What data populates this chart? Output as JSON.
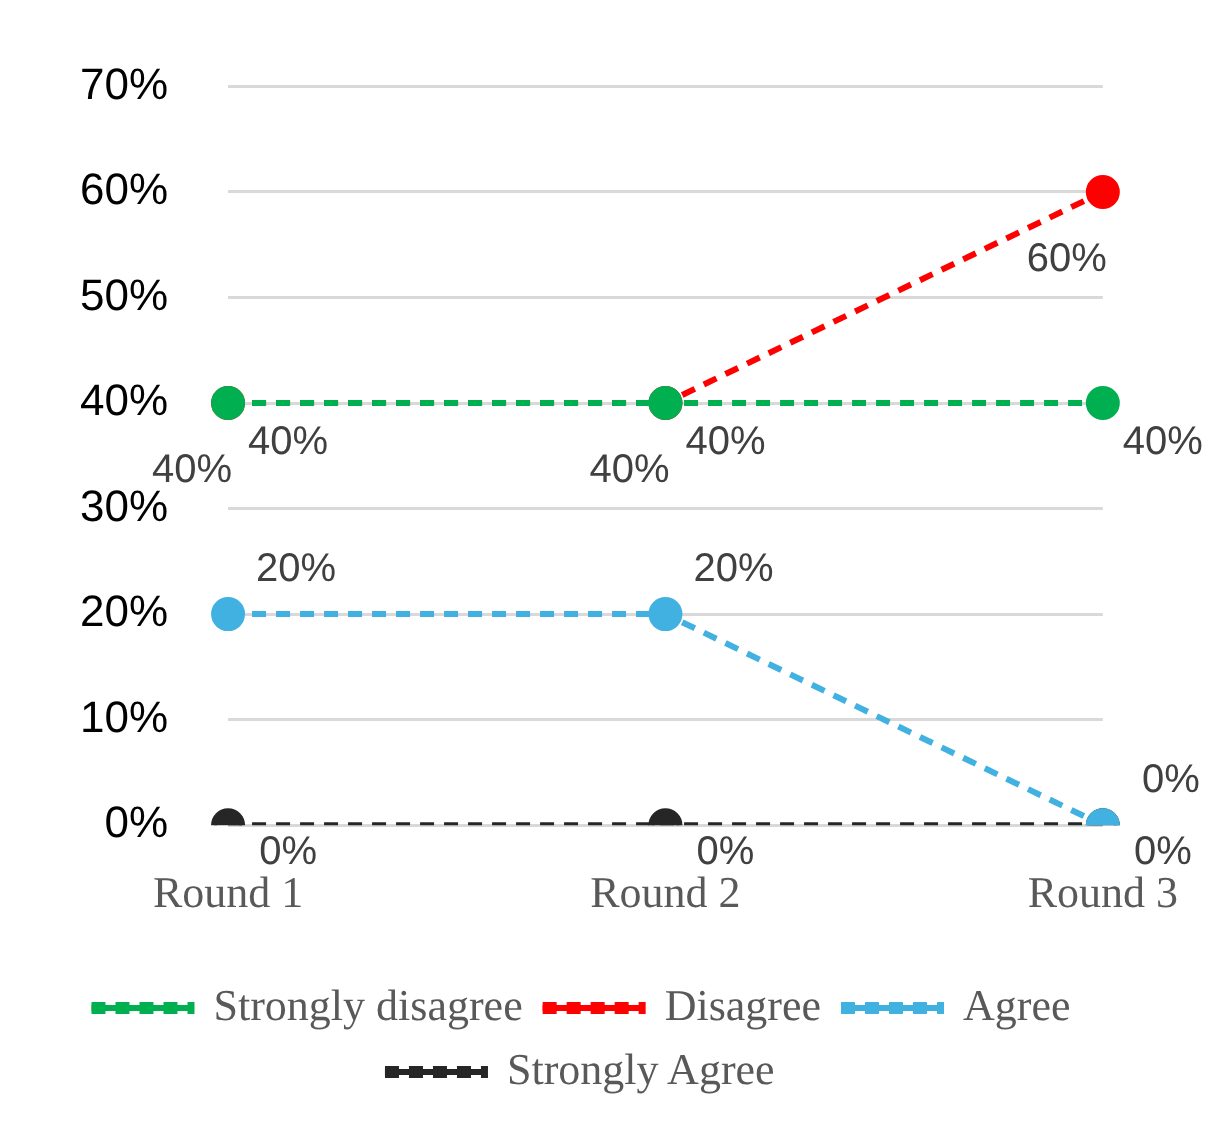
{
  "chart_data": {
    "type": "line",
    "categories": [
      "Round 1",
      "Round 2",
      "Round 3"
    ],
    "series": [
      {
        "name": "Strongly disagree",
        "color": "#00b050",
        "values": [
          40,
          40,
          40
        ],
        "value_labels": [
          "40%",
          "40%",
          "40%"
        ]
      },
      {
        "name": "Disagree",
        "color": "#ff0000",
        "values": [
          40,
          40,
          60
        ],
        "value_labels": [
          "40%",
          "40%",
          "60%"
        ]
      },
      {
        "name": "Agree",
        "color": "#41b1e1",
        "values": [
          20,
          20,
          0
        ],
        "value_labels": [
          "20%",
          "20%",
          "0%"
        ]
      },
      {
        "name": "Strongly Agree",
        "color": "#262626",
        "values": [
          0,
          0,
          0
        ],
        "value_labels": [
          "0%",
          "0%",
          "0%"
        ]
      }
    ],
    "ylim": [
      0,
      70
    ],
    "yticks": [
      {
        "value": 0,
        "label": "0%"
      },
      {
        "value": 10,
        "label": "10%"
      },
      {
        "value": 20,
        "label": "20%"
      },
      {
        "value": 30,
        "label": "30%"
      },
      {
        "value": 40,
        "label": "40%"
      },
      {
        "value": 50,
        "label": "50%"
      },
      {
        "value": 60,
        "label": "60%"
      },
      {
        "value": 70,
        "label": "70%"
      }
    ],
    "grid": "y",
    "legend": "bottom",
    "marker": "circle",
    "line_style": "dashed"
  }
}
